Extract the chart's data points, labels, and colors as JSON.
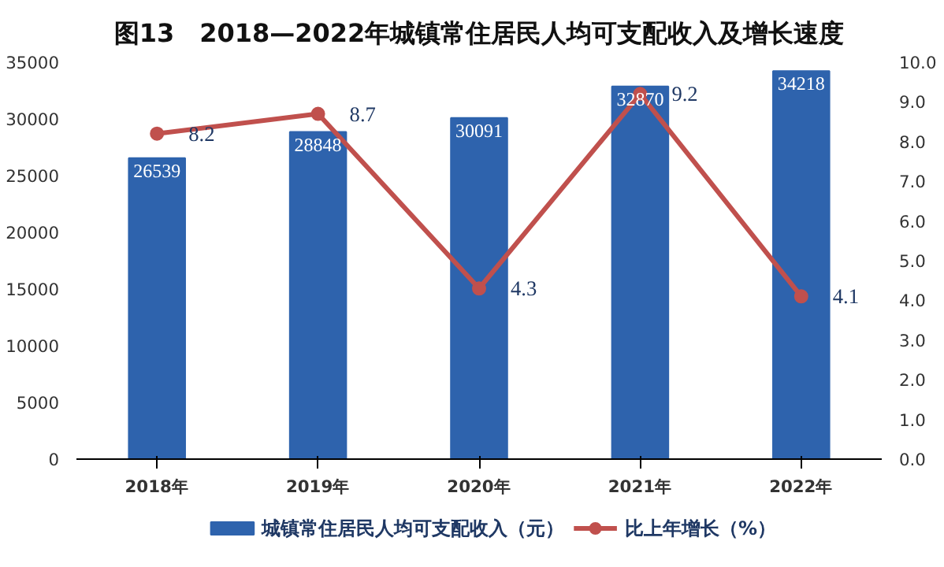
{
  "chart_data": {
    "type": "bar",
    "title": "图13　2018—2022年城镇常住居民人均可支配收入及增长速度",
    "categories": [
      "2018年",
      "2019年",
      "2020年",
      "2021年",
      "2022年"
    ],
    "series": [
      {
        "name": "城镇常住居民人均可支配收入（元）",
        "color": "#2e63ad",
        "values": [
          26539,
          28848,
          30091,
          32870,
          34218
        ]
      },
      {
        "name": "比上年增长（%）",
        "type": "line",
        "axis": "y2",
        "color": "#c0504d",
        "marker": "circle",
        "values": [
          8.2,
          8.7,
          4.3,
          9.2,
          4.1
        ]
      }
    ],
    "ylim": [
      0,
      35000
    ],
    "yticks": [
      0,
      5000,
      10000,
      15000,
      20000,
      25000,
      30000,
      35000
    ],
    "y2lim": [
      0,
      10
    ],
    "y2ticks": [
      {
        "value": 0,
        "label": "0.0"
      },
      {
        "value": 1,
        "label": "1.0"
      },
      {
        "value": 2,
        "label": "2.0"
      },
      {
        "value": 3,
        "label": "3.0"
      },
      {
        "value": 4,
        "label": "4.0"
      },
      {
        "value": 5,
        "label": "5.0"
      },
      {
        "value": 6,
        "label": "6.0"
      },
      {
        "value": 7,
        "label": "7.0"
      },
      {
        "value": 8,
        "label": "8.0"
      },
      {
        "value": 9,
        "label": "9.0"
      },
      {
        "value": 10,
        "label": "10.0"
      }
    ],
    "data_labels": true,
    "legend": "bottom",
    "grid": false
  }
}
